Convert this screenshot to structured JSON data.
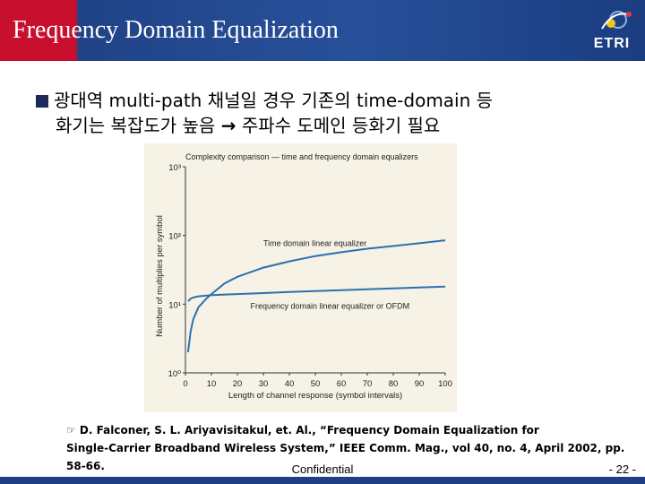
{
  "header": {
    "title": "Frequency Domain Equalization",
    "logo_text": "ETRI"
  },
  "bullet": {
    "line1": "광대역 multi-path 채널일 경우 기존의 time-domain 등",
    "line2_a": "화기는 복잡도가 높음",
    "line2_b": "주파수 도메인 등화기 필요"
  },
  "chart_data": {
    "type": "line",
    "title": "Complexity comparison — time and frequency domain equalizers",
    "xlabel": "Length of channel response (symbol intervals)",
    "ylabel": "Number of multiplies per symbol",
    "xlim": [
      0,
      100
    ],
    "ylim": [
      1,
      1000
    ],
    "yscale": "log",
    "x_ticks": [
      "0",
      "10",
      "20",
      "30",
      "40",
      "50",
      "60",
      "70",
      "80",
      "90",
      "100"
    ],
    "y_ticks": [
      "10³",
      "10²",
      "10¹",
      "10⁰"
    ],
    "grid": false,
    "series": [
      {
        "name": "Time domain linear equalizer",
        "color": "#2e6fb0",
        "x": [
          1,
          2,
          3,
          5,
          8,
          10,
          15,
          20,
          30,
          40,
          50,
          60,
          70,
          80,
          90,
          100
        ],
        "y": [
          2,
          4,
          6,
          9,
          12,
          14,
          20,
          25,
          34,
          42,
          50,
          57,
          64,
          70,
          77,
          85
        ]
      },
      {
        "name": "Frequency domain linear equalizer or OFDM",
        "color": "#2e6fb0",
        "x": [
          1,
          2,
          3,
          5,
          10,
          20,
          30,
          40,
          50,
          60,
          70,
          80,
          90,
          100
        ],
        "y": [
          11,
          12,
          12.5,
          13,
          13.5,
          14,
          14.5,
          15,
          15.5,
          16,
          16.5,
          17,
          17.5,
          18
        ]
      }
    ]
  },
  "reference": {
    "line1": "☞ D. Falconer, S. L. Ariyavisitakul, et. Al., “Frequency Domain Equalization for",
    "line2": "Single-Carrier Broadband Wireless System,” IEEE Comm. Mag., vol 40, no. 4, April 2002, pp. 58-66."
  },
  "footer": {
    "confidential": "Confidential",
    "page": "- 22 -"
  }
}
